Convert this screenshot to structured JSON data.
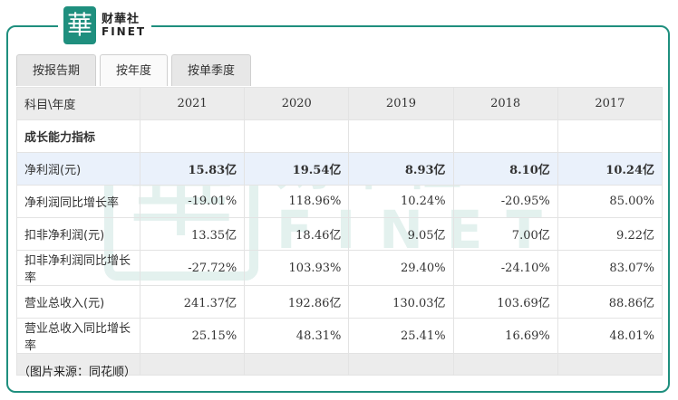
{
  "logo": {
    "mark": "華",
    "cn": "财華社",
    "en": "FINET"
  },
  "tabs": [
    "按报告期",
    "按年度",
    "按单季度"
  ],
  "active_tab": "按年度",
  "table": {
    "header": [
      "科目\\年度",
      "2021",
      "2020",
      "2019",
      "2018",
      "2017"
    ],
    "section_title": "成长能力指标",
    "rows": [
      {
        "label": "净利润(元)",
        "values": [
          "15.83亿",
          "19.54亿",
          "8.93亿",
          "8.10亿",
          "10.24亿"
        ],
        "highlight": true
      },
      {
        "label": "净利润同比增长率",
        "values": [
          "-19.01%",
          "118.96%",
          "10.24%",
          "-20.95%",
          "85.00%"
        ]
      },
      {
        "label": "扣非净利润(元)",
        "values": [
          "13.35亿",
          "18.46亿",
          "9.05亿",
          "7.00亿",
          "9.22亿"
        ]
      },
      {
        "label": "扣非净利润同比增长率",
        "values": [
          "-27.72%",
          "103.93%",
          "29.40%",
          "-24.10%",
          "83.07%"
        ]
      },
      {
        "label": "营业总收入(元)",
        "values": [
          "241.37亿",
          "192.86亿",
          "130.03亿",
          "103.69亿",
          "88.86亿"
        ]
      },
      {
        "label": "营业总收入同比增长率",
        "values": [
          "25.15%",
          "48.31%",
          "25.41%",
          "16.69%",
          "48.01%"
        ]
      }
    ]
  },
  "source_note": "（图片来源：同花顺）",
  "colors": {
    "brand": "#1f8f7e",
    "highlight_row": "#eaf1fb",
    "header_bg": "#ececec"
  }
}
